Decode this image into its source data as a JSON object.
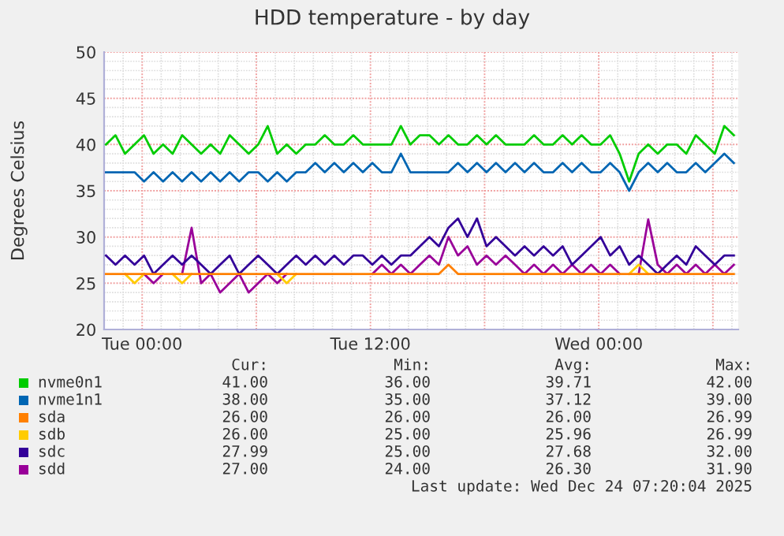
{
  "chart_data": {
    "type": "line",
    "title": "HDD temperature - by day",
    "ylabel": "Degrees Celsius",
    "x": [
      "2025-12-22T22:06",
      "2025-12-22T22:36",
      "2025-12-22T23:06",
      "2025-12-22T23:36",
      "2025-12-23T00:06",
      "2025-12-23T00:36",
      "2025-12-23T01:06",
      "2025-12-23T01:36",
      "2025-12-23T02:06",
      "2025-12-23T02:36",
      "2025-12-23T03:06",
      "2025-12-23T03:36",
      "2025-12-23T04:06",
      "2025-12-23T04:36",
      "2025-12-23T05:06",
      "2025-12-23T05:36",
      "2025-12-23T06:06",
      "2025-12-23T06:36",
      "2025-12-23T07:06",
      "2025-12-23T07:36",
      "2025-12-23T08:06",
      "2025-12-23T08:36",
      "2025-12-23T09:06",
      "2025-12-23T09:36",
      "2025-12-23T10:06",
      "2025-12-23T10:36",
      "2025-12-23T11:06",
      "2025-12-23T11:36",
      "2025-12-23T12:06",
      "2025-12-23T12:36",
      "2025-12-23T13:06",
      "2025-12-23T13:36",
      "2025-12-23T14:06",
      "2025-12-23T14:36",
      "2025-12-23T15:06",
      "2025-12-23T15:36",
      "2025-12-23T16:06",
      "2025-12-23T16:36",
      "2025-12-23T17:06",
      "2025-12-23T17:36",
      "2025-12-23T18:06",
      "2025-12-23T18:36",
      "2025-12-23T19:06",
      "2025-12-23T19:36",
      "2025-12-23T20:06",
      "2025-12-23T20:36",
      "2025-12-23T21:06",
      "2025-12-23T21:36",
      "2025-12-23T22:06",
      "2025-12-23T22:36",
      "2025-12-23T23:06",
      "2025-12-23T23:36",
      "2025-12-24T00:06",
      "2025-12-24T00:36",
      "2025-12-24T01:06",
      "2025-12-24T01:36",
      "2025-12-24T02:06",
      "2025-12-24T02:36",
      "2025-12-24T03:06",
      "2025-12-24T03:36",
      "2025-12-24T04:06",
      "2025-12-24T04:36",
      "2025-12-24T05:06",
      "2025-12-24T05:36",
      "2025-12-24T06:06",
      "2025-12-24T06:36",
      "2025-12-24T07:06"
    ],
    "xlim": [
      "2025-12-22T22:00",
      "2025-12-24T07:20"
    ],
    "xticks": [
      {
        "value": "2025-12-23T00:00",
        "label": "Tue 00:00"
      },
      {
        "value": "2025-12-23T06:00",
        "label": null
      },
      {
        "value": "2025-12-23T12:00",
        "label": "Tue 12:00"
      },
      {
        "value": "2025-12-23T18:00",
        "label": null
      },
      {
        "value": "2025-12-24T00:00",
        "label": "Wed 00:00"
      },
      {
        "value": "2025-12-24T06:00",
        "label": null
      }
    ],
    "ylim": [
      20,
      50
    ],
    "yticks": [
      20,
      25,
      30,
      35,
      40,
      45,
      50
    ],
    "grid": true,
    "legend": "bottom",
    "marker": "none",
    "line_style": "solid",
    "series": [
      {
        "name": "nvme0n1",
        "color": "#00cc00",
        "values": [
          40,
          41,
          39,
          40,
          41,
          39,
          40,
          39,
          41,
          40,
          39,
          40,
          39,
          41,
          40,
          39,
          40,
          42,
          39,
          40,
          39,
          40,
          40,
          41,
          40,
          40,
          41,
          40,
          40,
          40,
          40,
          42,
          40,
          41,
          41,
          40,
          41,
          40,
          40,
          41,
          40,
          41,
          40,
          40,
          40,
          41,
          40,
          40,
          41,
          40,
          41,
          40,
          40,
          41,
          39,
          36,
          39,
          40,
          39,
          40,
          40,
          39,
          41,
          40,
          39,
          42,
          41
        ]
      },
      {
        "name": "nvme1n1",
        "color": "#0066b3",
        "values": [
          37,
          37,
          37,
          37,
          36,
          37,
          36,
          37,
          36,
          37,
          36,
          37,
          36,
          37,
          36,
          37,
          37,
          36,
          37,
          36,
          37,
          37,
          38,
          37,
          38,
          37,
          38,
          37,
          38,
          37,
          37,
          39,
          37,
          37,
          37,
          37,
          37,
          38,
          37,
          38,
          37,
          38,
          37,
          38,
          37,
          38,
          37,
          37,
          38,
          37,
          38,
          37,
          37,
          38,
          37,
          35,
          37,
          38,
          37,
          38,
          37,
          37,
          38,
          37,
          38,
          39,
          38
        ]
      },
      {
        "name": "sda",
        "color": "#ff8000",
        "values": [
          26,
          26,
          26,
          26,
          26,
          26,
          26,
          26,
          26,
          26,
          26,
          26,
          26,
          26,
          26,
          26,
          26,
          26,
          26,
          26,
          26,
          26,
          26,
          26,
          26,
          26,
          26,
          26,
          26,
          26,
          26,
          26,
          26,
          26,
          26,
          26,
          27,
          26,
          26,
          26,
          26,
          26,
          26,
          26,
          26,
          26,
          26,
          26,
          26,
          26,
          26,
          26,
          26,
          26,
          26,
          26,
          26,
          26,
          26,
          26,
          26,
          26,
          26,
          26,
          26,
          26,
          26
        ]
      },
      {
        "name": "sdb",
        "color": "#ffcc00",
        "values": [
          null,
          null,
          26,
          25,
          26,
          null,
          null,
          26,
          25,
          26,
          null,
          null,
          null,
          null,
          null,
          null,
          null,
          null,
          26,
          25,
          26,
          null,
          null,
          null,
          null,
          null,
          null,
          null,
          null,
          null,
          null,
          null,
          null,
          null,
          null,
          null,
          null,
          null,
          null,
          null,
          null,
          null,
          null,
          null,
          null,
          null,
          null,
          null,
          null,
          null,
          null,
          null,
          null,
          null,
          null,
          26,
          27,
          26,
          null,
          null,
          null,
          null,
          null,
          null,
          null,
          null,
          null
        ]
      },
      {
        "name": "sdc",
        "color": "#330099",
        "values": [
          28,
          27,
          28,
          27,
          28,
          26,
          27,
          28,
          27,
          28,
          27,
          26,
          27,
          28,
          26,
          27,
          28,
          27,
          26,
          27,
          28,
          27,
          28,
          27,
          28,
          27,
          28,
          28,
          27,
          28,
          27,
          28,
          28,
          29,
          30,
          29,
          31,
          32,
          30,
          32,
          29,
          30,
          29,
          28,
          29,
          28,
          29,
          28,
          29,
          27,
          28,
          29,
          30,
          28,
          29,
          27,
          28,
          27,
          26,
          27,
          28,
          27,
          29,
          28,
          27,
          28,
          28
        ]
      },
      {
        "name": "sdd",
        "color": "#990099",
        "values": [
          null,
          null,
          null,
          null,
          26,
          25,
          26,
          null,
          26,
          31,
          25,
          26,
          24,
          25,
          26,
          24,
          25,
          26,
          25,
          26,
          null,
          null,
          null,
          null,
          null,
          null,
          null,
          null,
          26,
          27,
          26,
          27,
          26,
          27,
          28,
          27,
          30,
          28,
          29,
          27,
          28,
          27,
          28,
          27,
          26,
          27,
          26,
          27,
          26,
          27,
          26,
          27,
          26,
          27,
          26,
          null,
          26,
          31.9,
          27,
          26,
          27,
          26,
          27,
          26,
          27,
          26,
          27
        ]
      }
    ],
    "annotations": [
      "Cur:",
      "Min:",
      "Avg:",
      "Max:",
      "41.00",
      "36.00",
      "39.71",
      "42.00",
      "38.00",
      "35.00",
      "37.12",
      "39.00",
      "26.00",
      "26.00",
      "26.00",
      "26.99",
      "26.00",
      "25.00",
      "25.96",
      "26.99",
      "27.99",
      "25.00",
      "27.68",
      "32.00",
      "27.00",
      "24.00",
      "26.30",
      "31.90",
      "Last update: Wed Dec 24 07:20:04 2025"
    ]
  }
}
